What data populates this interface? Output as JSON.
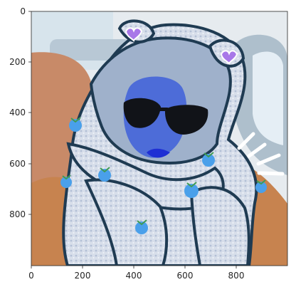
{
  "axes": {
    "x_ticks": [
      "0",
      "200",
      "400",
      "600",
      "800"
    ],
    "y_ticks": [
      "0",
      "200",
      "400",
      "600",
      "800"
    ]
  },
  "image": {
    "colors": {
      "sky": "#d7e4ec",
      "window": "#b8c8d5",
      "seat": "#c88a68",
      "jacket": "#c7834f",
      "hoodie": "#d7deea",
      "hoodie_shadow": "#9fb1cb",
      "outline": "#1f3b52",
      "face": "#4d6cd8",
      "lips": "#1f2fd4",
      "sunglasses": "#111318",
      "sticker_blue": "#4aa0ea",
      "sticker_green": "#3f9b53",
      "heart": "#a878e8"
    }
  }
}
